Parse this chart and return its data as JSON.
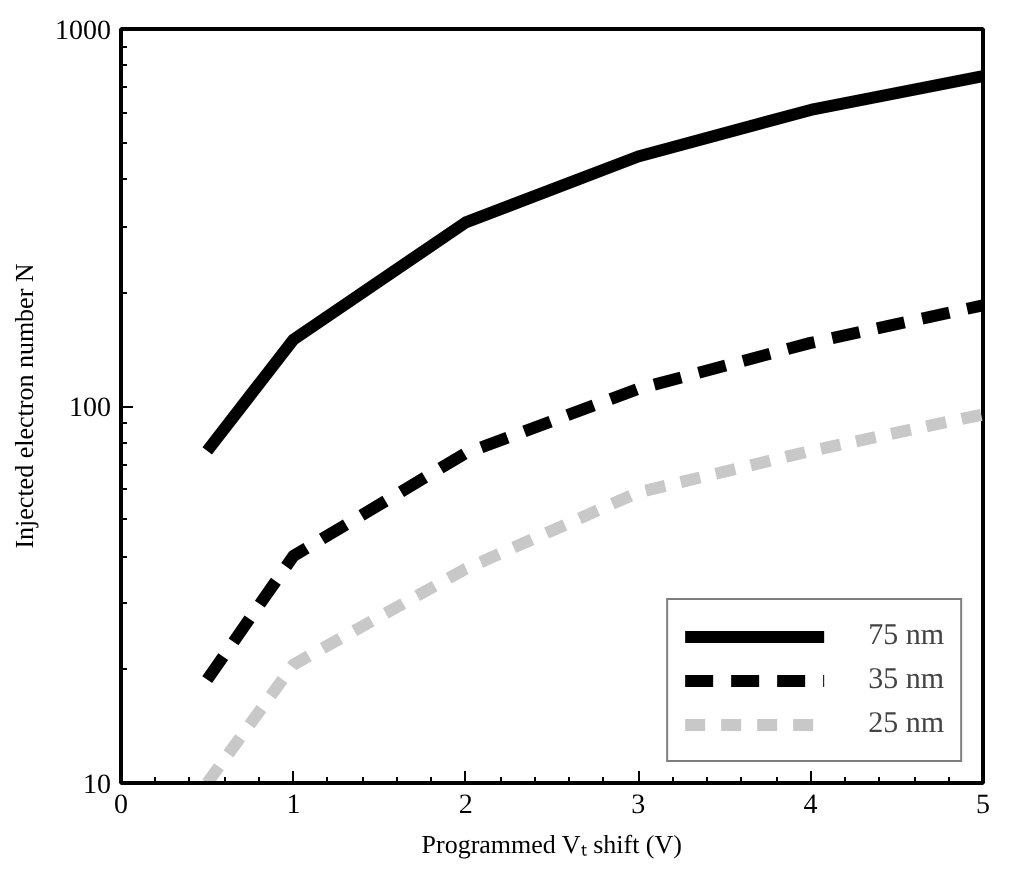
{
  "chart_data": {
    "type": "line",
    "xlabel": "Programmed Vₜ shift (V)",
    "ylabel": "Injected electron number N",
    "x": [
      0.5,
      1,
      2,
      3,
      4,
      5
    ],
    "series": [
      {
        "name": "75 nm",
        "color": "#000000",
        "line_style": "solid",
        "values": [
          76,
          150,
          307,
          459,
          610,
          750
        ]
      },
      {
        "name": "35 nm",
        "color": "#000000",
        "line_style": "dashed",
        "values": [
          18.8,
          40,
          75,
          111,
          147,
          185
        ]
      },
      {
        "name": "25 nm",
        "color": "#c8c8c8",
        "line_style": "dashed",
        "values": [
          10,
          20.6,
          37,
          59,
          76,
          95
        ]
      }
    ],
    "log": "y",
    "xlim": [
      0,
      5
    ],
    "ylim": [
      10,
      1000
    ],
    "xticks": [
      0,
      1,
      2,
      3,
      4,
      5
    ],
    "yticks": [
      10,
      100,
      1000
    ],
    "grid": false,
    "legend": "bottom right",
    "marker": "none"
  }
}
